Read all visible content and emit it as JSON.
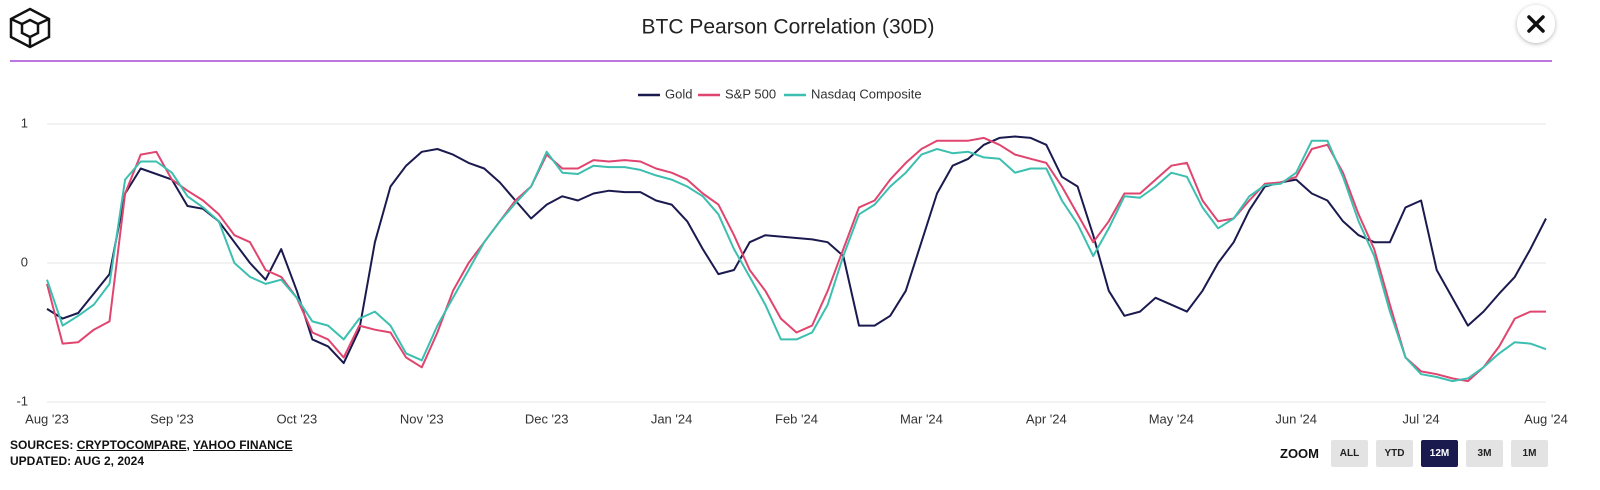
{
  "chart_data": {
    "type": "line",
    "title": "BTC Pearson Correlation (30D)",
    "categories": [
      "Aug '23",
      null,
      null,
      null,
      null,
      null,
      null,
      null,
      "Sep '23",
      null,
      null,
      null,
      null,
      null,
      null,
      null,
      "Oct '23",
      null,
      null,
      null,
      null,
      null,
      null,
      null,
      "Nov '23",
      null,
      null,
      null,
      null,
      null,
      null,
      null,
      "Dec '23",
      null,
      null,
      null,
      null,
      null,
      null,
      null,
      "Jan '24",
      null,
      null,
      null,
      null,
      null,
      null,
      null,
      "Feb '24",
      null,
      null,
      null,
      null,
      null,
      null,
      null,
      "Mar '24",
      null,
      null,
      null,
      null,
      null,
      null,
      null,
      "Apr '24",
      null,
      null,
      null,
      null,
      null,
      null,
      null,
      "May '24",
      null,
      null,
      null,
      null,
      null,
      null,
      null,
      "Jun '24",
      null,
      null,
      null,
      null,
      null,
      null,
      null,
      "Jul '24",
      null,
      null,
      null,
      null,
      null,
      null,
      null,
      "Aug '24"
    ],
    "series": [
      {
        "name": "Gold",
        "color": "#1b1a4f",
        "values": [
          -0.33,
          -0.4,
          -0.36,
          -0.22,
          -0.08,
          0.5,
          0.68,
          0.64,
          0.6,
          0.41,
          0.39,
          0.3,
          0.15,
          0.0,
          -0.12,
          0.1,
          -0.2,
          -0.55,
          -0.6,
          -0.72,
          -0.48,
          0.15,
          0.55,
          0.7,
          0.8,
          0.82,
          0.78,
          0.72,
          0.68,
          0.58,
          0.45,
          0.32,
          0.42,
          0.48,
          0.45,
          0.5,
          0.52,
          0.51,
          0.51,
          0.45,
          0.42,
          0.3,
          0.1,
          -0.08,
          -0.05,
          0.15,
          0.2,
          0.19,
          0.18,
          0.17,
          0.15,
          0.05,
          -0.45,
          -0.45,
          -0.38,
          -0.2,
          0.15,
          0.5,
          0.7,
          0.75,
          0.85,
          0.9,
          0.91,
          0.9,
          0.85,
          0.62,
          0.55,
          0.2,
          -0.2,
          -0.38,
          -0.35,
          -0.25,
          -0.3,
          -0.35,
          -0.2,
          0.0,
          0.15,
          0.38,
          0.55,
          0.58,
          0.6,
          0.5,
          0.45,
          0.3,
          0.2,
          0.15,
          0.15,
          0.4,
          0.45,
          -0.05,
          -0.25,
          -0.45,
          -0.35,
          -0.22,
          -0.1,
          0.1,
          0.32
        ]
      },
      {
        "name": "S&P 500",
        "color": "#e0456f",
        "values": [
          -0.15,
          -0.58,
          -0.57,
          -0.48,
          -0.42,
          0.5,
          0.78,
          0.8,
          0.6,
          0.52,
          0.45,
          0.35,
          0.2,
          0.15,
          -0.05,
          -0.1,
          -0.25,
          -0.5,
          -0.55,
          -0.68,
          -0.45,
          -0.48,
          -0.5,
          -0.68,
          -0.75,
          -0.5,
          -0.2,
          0.0,
          0.15,
          0.3,
          0.45,
          0.55,
          0.78,
          0.68,
          0.68,
          0.74,
          0.73,
          0.74,
          0.73,
          0.68,
          0.65,
          0.6,
          0.5,
          0.42,
          0.2,
          -0.05,
          -0.2,
          -0.4,
          -0.5,
          -0.45,
          -0.2,
          0.1,
          0.4,
          0.45,
          0.6,
          0.72,
          0.82,
          0.88,
          0.88,
          0.88,
          0.9,
          0.85,
          0.78,
          0.75,
          0.72,
          0.55,
          0.35,
          0.15,
          0.3,
          0.5,
          0.5,
          0.6,
          0.7,
          0.72,
          0.45,
          0.3,
          0.32,
          0.45,
          0.57,
          0.58,
          0.62,
          0.82,
          0.85,
          0.65,
          0.35,
          0.1,
          -0.3,
          -0.68,
          -0.78,
          -0.8,
          -0.83,
          -0.85,
          -0.75,
          -0.6,
          -0.4,
          -0.35,
          -0.35
        ]
      },
      {
        "name": "Nasdaq Composite",
        "color": "#3cbfb0",
        "values": [
          -0.12,
          -0.45,
          -0.38,
          -0.3,
          -0.15,
          0.6,
          0.73,
          0.73,
          0.65,
          0.48,
          0.4,
          0.3,
          0.0,
          -0.1,
          -0.15,
          -0.12,
          -0.25,
          -0.42,
          -0.45,
          -0.55,
          -0.4,
          -0.35,
          -0.45,
          -0.65,
          -0.7,
          -0.45,
          -0.25,
          -0.05,
          0.15,
          0.3,
          0.43,
          0.55,
          0.8,
          0.65,
          0.64,
          0.7,
          0.69,
          0.69,
          0.67,
          0.63,
          0.6,
          0.55,
          0.48,
          0.35,
          0.1,
          -0.1,
          -0.3,
          -0.55,
          -0.55,
          -0.5,
          -0.3,
          0.05,
          0.35,
          0.42,
          0.55,
          0.65,
          0.78,
          0.82,
          0.79,
          0.8,
          0.76,
          0.75,
          0.65,
          0.68,
          0.68,
          0.45,
          0.28,
          0.05,
          0.25,
          0.48,
          0.47,
          0.55,
          0.65,
          0.62,
          0.4,
          0.25,
          0.32,
          0.48,
          0.56,
          0.57,
          0.65,
          0.88,
          0.88,
          0.62,
          0.3,
          0.05,
          -0.35,
          -0.68,
          -0.8,
          -0.82,
          -0.85,
          -0.83,
          -0.75,
          -0.65,
          -0.57,
          -0.58,
          -0.62
        ]
      }
    ],
    "ylim": [
      -1,
      1
    ],
    "yticks": [
      -1,
      0,
      1
    ],
    "grid": true
  },
  "footer": {
    "sources_label": "SOURCES:",
    "sources": [
      "CRYPTOCOMPARE",
      "YAHOO FINANCE"
    ],
    "separator": ",",
    "updated": "UPDATED: AUG 2, 2024"
  },
  "zoom": {
    "label": "ZOOM",
    "buttons": [
      "ALL",
      "YTD",
      "12M",
      "3M",
      "1M"
    ],
    "active": "12M"
  }
}
